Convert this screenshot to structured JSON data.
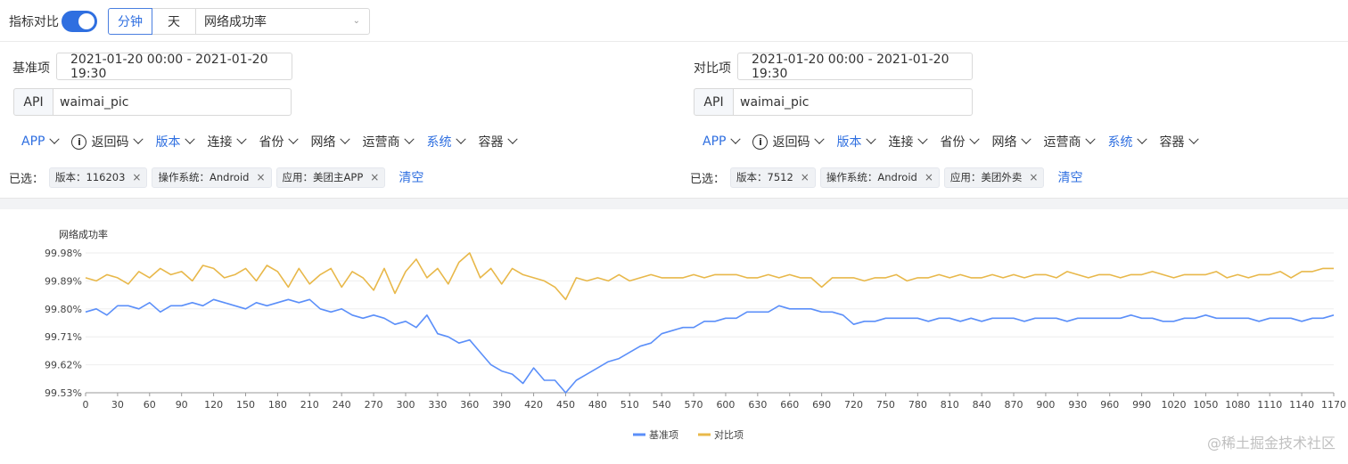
{
  "toolbar": {
    "compare_label": "指标对比",
    "granularity": [
      "分钟",
      "天"
    ],
    "metric_select": "网络成功率"
  },
  "panels": [
    {
      "label": "基准项",
      "date_range": "2021-01-20 00:00 - 2021-01-20 19:30",
      "api_label": "API",
      "api_value": "waimai_pic",
      "filters": [
        "APP",
        "返回码",
        "版本",
        "连接",
        "省份",
        "网络",
        "运营商",
        "系统",
        "容器"
      ],
      "selected_label": "已选：",
      "tags": [
        "版本：116203",
        "操作系统：Android",
        "应用：美团主APP"
      ],
      "clear": "清空"
    },
    {
      "label": "对比项",
      "date_range": "2021-01-20 00:00 - 2021-01-20 19:30",
      "api_label": "API",
      "api_value": "waimai_pic",
      "filters": [
        "APP",
        "返回码",
        "版本",
        "连接",
        "省份",
        "网络",
        "运营商",
        "系统",
        "容器"
      ],
      "selected_label": "已选：",
      "tags": [
        "版本：7512",
        "操作系统：Android",
        "应用：美团外卖"
      ],
      "clear": "清空"
    }
  ],
  "colors": {
    "accent": "#2f6fe0",
    "base_series": "#5b8ff9",
    "compare_series": "#e8b84a"
  },
  "watermark": "@稀土掘金技术社区",
  "chart_data": {
    "type": "line",
    "ylabel": "网络成功率",
    "y_ticks": [
      "99.53%",
      "99.62%",
      "99.71%",
      "99.80%",
      "99.89%",
      "99.98%"
    ],
    "ylim": [
      99.53,
      99.98
    ],
    "xlim": [
      0,
      1170
    ],
    "x_ticks": [
      0,
      30,
      60,
      90,
      120,
      150,
      180,
      210,
      240,
      270,
      300,
      330,
      360,
      390,
      420,
      450,
      480,
      510,
      540,
      570,
      600,
      630,
      660,
      690,
      720,
      750,
      780,
      810,
      840,
      870,
      900,
      930,
      960,
      990,
      1020,
      1050,
      1080,
      1110,
      1140,
      1170
    ],
    "legend_position": "bottom-center",
    "series": [
      {
        "name": "基准项",
        "color": "#5b8ff9",
        "points": [
          [
            0,
            99.79
          ],
          [
            10,
            99.8
          ],
          [
            20,
            99.78
          ],
          [
            30,
            99.81
          ],
          [
            40,
            99.81
          ],
          [
            50,
            99.8
          ],
          [
            60,
            99.82
          ],
          [
            70,
            99.79
          ],
          [
            80,
            99.81
          ],
          [
            90,
            99.81
          ],
          [
            100,
            99.82
          ],
          [
            110,
            99.81
          ],
          [
            120,
            99.83
          ],
          [
            130,
            99.82
          ],
          [
            140,
            99.81
          ],
          [
            150,
            99.8
          ],
          [
            160,
            99.82
          ],
          [
            170,
            99.81
          ],
          [
            180,
            99.82
          ],
          [
            190,
            99.83
          ],
          [
            200,
            99.82
          ],
          [
            210,
            99.83
          ],
          [
            220,
            99.8
          ],
          [
            230,
            99.79
          ],
          [
            240,
            99.8
          ],
          [
            250,
            99.78
          ],
          [
            260,
            99.77
          ],
          [
            270,
            99.78
          ],
          [
            280,
            99.77
          ],
          [
            290,
            99.75
          ],
          [
            300,
            99.76
          ],
          [
            310,
            99.74
          ],
          [
            320,
            99.78
          ],
          [
            330,
            99.72
          ],
          [
            340,
            99.71
          ],
          [
            350,
            99.69
          ],
          [
            360,
            99.7
          ],
          [
            370,
            99.66
          ],
          [
            380,
            99.62
          ],
          [
            390,
            99.6
          ],
          [
            400,
            99.59
          ],
          [
            410,
            99.56
          ],
          [
            420,
            99.61
          ],
          [
            430,
            99.57
          ],
          [
            440,
            99.57
          ],
          [
            450,
            99.53
          ],
          [
            460,
            99.57
          ],
          [
            470,
            99.59
          ],
          [
            480,
            99.61
          ],
          [
            490,
            99.63
          ],
          [
            500,
            99.64
          ],
          [
            510,
            99.66
          ],
          [
            520,
            99.68
          ],
          [
            530,
            99.69
          ],
          [
            540,
            99.72
          ],
          [
            550,
            99.73
          ],
          [
            560,
            99.74
          ],
          [
            570,
            99.74
          ],
          [
            580,
            99.76
          ],
          [
            590,
            99.76
          ],
          [
            600,
            99.77
          ],
          [
            610,
            99.77
          ],
          [
            620,
            99.79
          ],
          [
            630,
            99.79
          ],
          [
            640,
            99.79
          ],
          [
            650,
            99.81
          ],
          [
            660,
            99.8
          ],
          [
            670,
            99.8
          ],
          [
            680,
            99.8
          ],
          [
            690,
            99.79
          ],
          [
            700,
            99.79
          ],
          [
            710,
            99.78
          ],
          [
            720,
            99.75
          ],
          [
            730,
            99.76
          ],
          [
            740,
            99.76
          ],
          [
            750,
            99.77
          ],
          [
            760,
            99.77
          ],
          [
            770,
            99.77
          ],
          [
            780,
            99.77
          ],
          [
            790,
            99.76
          ],
          [
            800,
            99.77
          ],
          [
            810,
            99.77
          ],
          [
            820,
            99.76
          ],
          [
            830,
            99.77
          ],
          [
            840,
            99.76
          ],
          [
            850,
            99.77
          ],
          [
            860,
            99.77
          ],
          [
            870,
            99.77
          ],
          [
            880,
            99.76
          ],
          [
            890,
            99.77
          ],
          [
            900,
            99.77
          ],
          [
            910,
            99.77
          ],
          [
            920,
            99.76
          ],
          [
            930,
            99.77
          ],
          [
            940,
            99.77
          ],
          [
            950,
            99.77
          ],
          [
            960,
            99.77
          ],
          [
            970,
            99.77
          ],
          [
            980,
            99.78
          ],
          [
            990,
            99.77
          ],
          [
            1000,
            99.77
          ],
          [
            1010,
            99.76
          ],
          [
            1020,
            99.76
          ],
          [
            1030,
            99.77
          ],
          [
            1040,
            99.77
          ],
          [
            1050,
            99.78
          ],
          [
            1060,
            99.77
          ],
          [
            1070,
            99.77
          ],
          [
            1080,
            99.77
          ],
          [
            1090,
            99.77
          ],
          [
            1100,
            99.76
          ],
          [
            1110,
            99.77
          ],
          [
            1120,
            99.77
          ],
          [
            1130,
            99.77
          ],
          [
            1140,
            99.76
          ],
          [
            1150,
            99.77
          ],
          [
            1160,
            99.77
          ],
          [
            1170,
            99.78
          ]
        ]
      },
      {
        "name": "对比项",
        "color": "#e8b84a",
        "points": [
          [
            0,
            99.9
          ],
          [
            10,
            99.89
          ],
          [
            20,
            99.91
          ],
          [
            30,
            99.9
          ],
          [
            40,
            99.88
          ],
          [
            50,
            99.92
          ],
          [
            60,
            99.9
          ],
          [
            70,
            99.93
          ],
          [
            80,
            99.91
          ],
          [
            90,
            99.92
          ],
          [
            100,
            99.89
          ],
          [
            110,
            99.94
          ],
          [
            120,
            99.93
          ],
          [
            130,
            99.9
          ],
          [
            140,
            99.91
          ],
          [
            150,
            99.93
          ],
          [
            160,
            99.89
          ],
          [
            170,
            99.94
          ],
          [
            180,
            99.92
          ],
          [
            190,
            99.87
          ],
          [
            200,
            99.93
          ],
          [
            210,
            99.88
          ],
          [
            220,
            99.91
          ],
          [
            230,
            99.93
          ],
          [
            240,
            99.87
          ],
          [
            250,
            99.92
          ],
          [
            260,
            99.9
          ],
          [
            270,
            99.86
          ],
          [
            280,
            99.93
          ],
          [
            290,
            99.85
          ],
          [
            300,
            99.92
          ],
          [
            310,
            99.96
          ],
          [
            320,
            99.9
          ],
          [
            330,
            99.93
          ],
          [
            340,
            99.88
          ],
          [
            350,
            99.95
          ],
          [
            360,
            99.98
          ],
          [
            370,
            99.9
          ],
          [
            380,
            99.93
          ],
          [
            390,
            99.88
          ],
          [
            400,
            99.93
          ],
          [
            410,
            99.91
          ],
          [
            420,
            99.9
          ],
          [
            430,
            99.89
          ],
          [
            440,
            99.87
          ],
          [
            450,
            99.83
          ],
          [
            460,
            99.9
          ],
          [
            470,
            99.89
          ],
          [
            480,
            99.9
          ],
          [
            490,
            99.89
          ],
          [
            500,
            99.91
          ],
          [
            510,
            99.89
          ],
          [
            520,
            99.9
          ],
          [
            530,
            99.91
          ],
          [
            540,
            99.9
          ],
          [
            550,
            99.9
          ],
          [
            560,
            99.9
          ],
          [
            570,
            99.91
          ],
          [
            580,
            99.9
          ],
          [
            590,
            99.91
          ],
          [
            600,
            99.91
          ],
          [
            610,
            99.91
          ],
          [
            620,
            99.9
          ],
          [
            630,
            99.9
          ],
          [
            640,
            99.91
          ],
          [
            650,
            99.9
          ],
          [
            660,
            99.91
          ],
          [
            670,
            99.9
          ],
          [
            680,
            99.9
          ],
          [
            690,
            99.87
          ],
          [
            700,
            99.9
          ],
          [
            710,
            99.9
          ],
          [
            720,
            99.9
          ],
          [
            730,
            99.89
          ],
          [
            740,
            99.9
          ],
          [
            750,
            99.9
          ],
          [
            760,
            99.91
          ],
          [
            770,
            99.89
          ],
          [
            780,
            99.9
          ],
          [
            790,
            99.9
          ],
          [
            800,
            99.91
          ],
          [
            810,
            99.9
          ],
          [
            820,
            99.91
          ],
          [
            830,
            99.9
          ],
          [
            840,
            99.9
          ],
          [
            850,
            99.91
          ],
          [
            860,
            99.9
          ],
          [
            870,
            99.91
          ],
          [
            880,
            99.9
          ],
          [
            890,
            99.91
          ],
          [
            900,
            99.91
          ],
          [
            910,
            99.9
          ],
          [
            920,
            99.92
          ],
          [
            930,
            99.91
          ],
          [
            940,
            99.9
          ],
          [
            950,
            99.91
          ],
          [
            960,
            99.91
          ],
          [
            970,
            99.9
          ],
          [
            980,
            99.91
          ],
          [
            990,
            99.91
          ],
          [
            1000,
            99.92
          ],
          [
            1010,
            99.91
          ],
          [
            1020,
            99.9
          ],
          [
            1030,
            99.91
          ],
          [
            1040,
            99.91
          ],
          [
            1050,
            99.91
          ],
          [
            1060,
            99.92
          ],
          [
            1070,
            99.9
          ],
          [
            1080,
            99.91
          ],
          [
            1090,
            99.9
          ],
          [
            1100,
            99.91
          ],
          [
            1110,
            99.91
          ],
          [
            1120,
            99.92
          ],
          [
            1130,
            99.9
          ],
          [
            1140,
            99.92
          ],
          [
            1150,
            99.92
          ],
          [
            1160,
            99.93
          ],
          [
            1170,
            99.93
          ]
        ]
      }
    ]
  }
}
